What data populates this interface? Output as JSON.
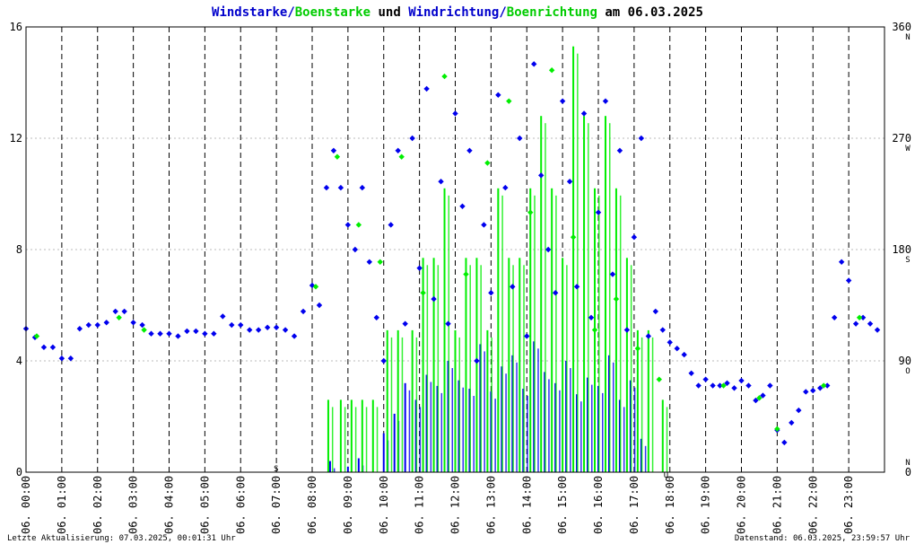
{
  "colors": {
    "speed": "#0000ee",
    "gust": "#00ee00",
    "grid": "#000000",
    "hgrid": "#bbbbbb",
    "marker": "#cc0000"
  },
  "title": {
    "part1": "Windstarke",
    "sep1": "/",
    "part2": "Boenstarke",
    "mid": " und ",
    "part3": "Windrichtung",
    "sep2": "/",
    "part4": "Boenrichtung",
    "tail": " am 06.03.2025"
  },
  "footer": {
    "left": "Letzte Aktualisierung: 07.03.2025, 00:01:31 Uhr",
    "right": "Datenstand: 06.03.2025, 23:59:57 Uhr"
  },
  "markers": [
    "S",
    "U"
  ],
  "chart_data": {
    "type": "scatter",
    "x_unit": "hour of day",
    "xlim": [
      0,
      24
    ],
    "x_ticks": [
      "06. 00:00",
      "06. 01:00",
      "06. 02:00",
      "06. 03:00",
      "06. 04:00",
      "06. 05:00",
      "06. 06:00",
      "06. 07:00",
      "06. 08:00",
      "06. 09:00",
      "06. 10:00",
      "06. 11:00",
      "06. 12:00",
      "06. 13:00",
      "06. 14:00",
      "06. 15:00",
      "06. 16:00",
      "06. 17:00",
      "06. 18:00",
      "06. 19:00",
      "06. 20:00",
      "06. 21:00",
      "06. 22:00",
      "06. 23:00"
    ],
    "y_left": {
      "lim": [
        0,
        16
      ],
      "ticks": [
        "0",
        "4",
        "8",
        "12",
        "16"
      ]
    },
    "y_right": {
      "lim": [
        0,
        360
      ],
      "ticks": [
        "0",
        "90",
        "180",
        "270",
        "360"
      ],
      "compass": [
        "N",
        "O",
        "S",
        "W",
        "N"
      ]
    },
    "grid": true,
    "series": [
      {
        "name": "Windstarke",
        "axis": "left",
        "color": "#0000ee",
        "kind": "bars",
        "x": [
          8.5,
          9.0,
          9.3,
          10.0,
          10.3,
          10.6,
          10.9,
          11.2,
          11.5,
          11.8,
          12.1,
          12.4,
          12.7,
          13.0,
          13.3,
          13.6,
          13.9,
          14.2,
          14.5,
          14.8,
          15.1,
          15.4,
          15.7,
          16.0,
          16.3,
          16.6,
          16.9,
          17.2
        ],
        "values": [
          0.4,
          0.2,
          0.5,
          1.4,
          2.1,
          3.2,
          2.6,
          3.5,
          3.1,
          4.0,
          3.3,
          3.0,
          4.6,
          2.9,
          3.8,
          4.2,
          3.0,
          4.7,
          3.6,
          3.2,
          4.0,
          2.8,
          3.4,
          3.1,
          4.2,
          2.6,
          3.3,
          1.2
        ]
      },
      {
        "name": "Boenstarke",
        "axis": "left",
        "color": "#00ee00",
        "kind": "bars",
        "x": [
          8.45,
          8.8,
          9.1,
          9.4,
          9.7,
          10.1,
          10.4,
          10.8,
          11.1,
          11.4,
          11.7,
          12.0,
          12.3,
          12.6,
          12.9,
          13.2,
          13.5,
          13.8,
          14.1,
          14.4,
          14.7,
          15.0,
          15.3,
          15.6,
          15.9,
          16.2,
          16.5,
          16.8,
          17.1,
          17.4,
          17.8
        ],
        "values": [
          2.6,
          2.6,
          2.6,
          2.6,
          2.6,
          5.1,
          5.1,
          5.1,
          7.7,
          7.7,
          10.2,
          5.1,
          7.7,
          7.7,
          5.1,
          10.2,
          7.7,
          7.7,
          10.2,
          12.8,
          10.2,
          7.7,
          15.3,
          12.8,
          10.2,
          12.8,
          10.2,
          7.7,
          5.1,
          5.1,
          2.6
        ]
      },
      {
        "name": "Windrichtung",
        "axis": "right",
        "color": "#0000ee",
        "kind": "points",
        "x": [
          0.0,
          0.25,
          0.5,
          0.75,
          1.0,
          1.25,
          1.5,
          1.75,
          2.0,
          2.25,
          2.5,
          2.75,
          3.0,
          3.25,
          3.5,
          3.75,
          4.0,
          4.25,
          4.5,
          4.75,
          5.0,
          5.25,
          5.5,
          5.75,
          6.0,
          6.25,
          6.5,
          6.75,
          7.0,
          7.25,
          7.5,
          7.75,
          8.0,
          8.2,
          8.4,
          8.6,
          8.8,
          9.0,
          9.2,
          9.4,
          9.6,
          9.8,
          10.0,
          10.2,
          10.4,
          10.6,
          10.8,
          11.0,
          11.2,
          11.4,
          11.6,
          11.8,
          12.0,
          12.2,
          12.4,
          12.6,
          12.8,
          13.0,
          13.2,
          13.4,
          13.6,
          13.8,
          14.0,
          14.2,
          14.4,
          14.6,
          14.8,
          15.0,
          15.2,
          15.4,
          15.6,
          15.8,
          16.0,
          16.2,
          16.4,
          16.6,
          16.8,
          17.0,
          17.2,
          17.4,
          17.6,
          17.8,
          18.0,
          18.2,
          18.4,
          18.6,
          18.8,
          19.0,
          19.2,
          19.4,
          19.6,
          19.8,
          20.0,
          20.2,
          20.4,
          20.6,
          20.8,
          21.0,
          21.2,
          21.4,
          21.6,
          21.8,
          22.0,
          22.2,
          22.4,
          22.6,
          22.8,
          23.0,
          23.2,
          23.4,
          23.6,
          23.8
        ],
        "values": [
          116,
          109,
          101,
          101,
          92,
          92,
          116,
          119,
          119,
          121,
          130,
          130,
          121,
          119,
          112,
          112,
          112,
          110,
          114,
          114,
          112,
          112,
          126,
          119,
          119,
          115,
          115,
          117,
          117,
          115,
          110,
          130,
          151,
          135,
          230,
          260,
          230,
          200,
          180,
          230,
          170,
          125,
          90,
          200,
          260,
          120,
          270,
          165,
          310,
          140,
          235,
          120,
          290,
          215,
          260,
          90,
          200,
          145,
          305,
          230,
          150,
          270,
          110,
          330,
          240,
          180,
          145,
          300,
          235,
          150,
          290,
          125,
          210,
          300,
          160,
          260,
          115,
          190,
          270,
          110,
          130,
          115,
          105,
          100,
          95,
          80,
          70,
          75,
          70,
          70,
          72,
          68,
          74,
          70,
          58,
          62,
          70,
          34,
          24,
          40,
          50,
          65,
          66,
          68,
          70,
          125,
          170,
          155,
          120,
          125,
          120,
          115
        ]
      },
      {
        "name": "Boenrichtung",
        "axis": "right",
        "color": "#00ee00",
        "kind": "points",
        "x": [
          0.3,
          2.6,
          3.3,
          8.1,
          8.7,
          9.3,
          9.9,
          10.5,
          11.1,
          11.7,
          12.3,
          12.9,
          13.5,
          14.1,
          14.7,
          15.3,
          15.9,
          16.5,
          17.1,
          17.7,
          19.5,
          20.5,
          21.0,
          22.3,
          23.3
        ],
        "values": [
          110,
          125,
          115,
          150,
          255,
          200,
          170,
          255,
          145,
          320,
          160,
          250,
          300,
          210,
          325,
          190,
          115,
          140,
          100,
          75,
          70,
          60,
          35,
          70,
          125
        ]
      }
    ]
  }
}
